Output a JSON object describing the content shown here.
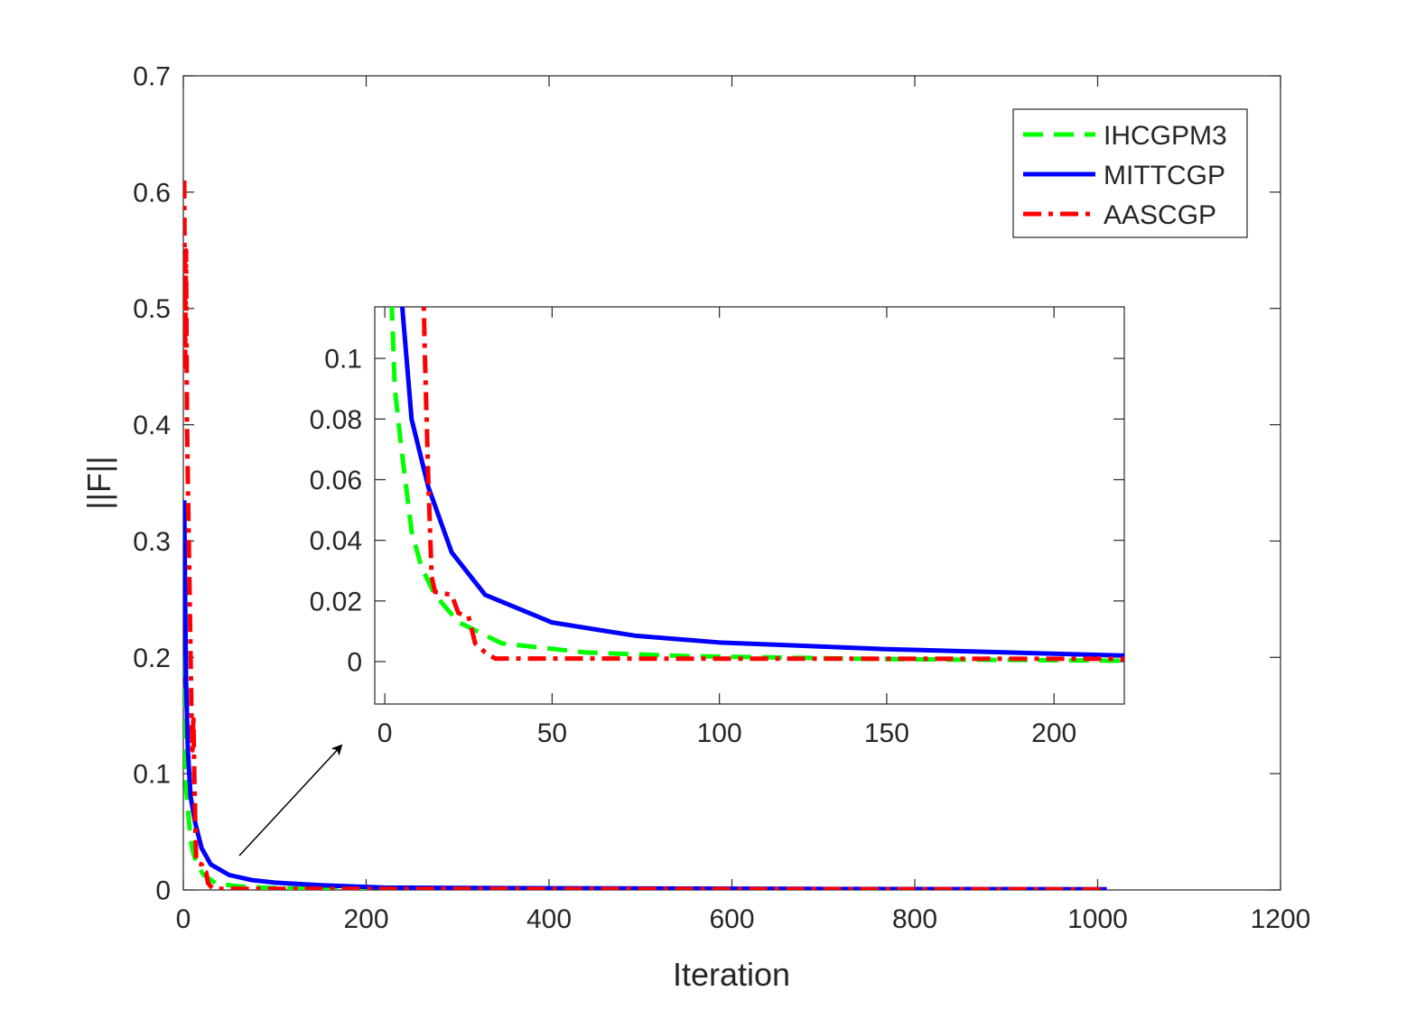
{
  "chart_data": {
    "type": "line",
    "xlabel": "Iteration",
    "ylabel": "||F||",
    "xlim": [
      0,
      1200
    ],
    "ylim": [
      0,
      0.7
    ],
    "xticks": [
      "0",
      "200",
      "400",
      "600",
      "800",
      "1000",
      "1200"
    ],
    "yticks": [
      "0",
      "0.1",
      "0.2",
      "0.3",
      "0.4",
      "0.5",
      "0.6",
      "0.7"
    ],
    "legend_position": "top-right",
    "series": [
      {
        "name": "IHCGPM3",
        "color": "#00ff00",
        "style": "dashed",
        "x": [
          1,
          2,
          3,
          5,
          8,
          11,
          15,
          22,
          35,
          60,
          90,
          150,
          220,
          400,
          700,
          1010
        ],
        "y": [
          0.2,
          0.12,
          0.09,
          0.07,
          0.043,
          0.031,
          0.022,
          0.013,
          0.006,
          0.003,
          0.0018,
          0.0008,
          0.0003,
          0.0002,
          0.0001,
          0.0001
        ]
      },
      {
        "name": "MITTCGP",
        "color": "#0000ff",
        "style": "solid",
        "x": [
          1,
          2,
          3,
          5,
          8,
          13,
          20,
          30,
          50,
          75,
          100,
          150,
          220,
          400,
          700,
          1010
        ],
        "y": [
          0.335,
          0.25,
          0.18,
          0.12,
          0.08,
          0.0576,
          0.036,
          0.022,
          0.0129,
          0.0085,
          0.0063,
          0.0041,
          0.002,
          0.0015,
          0.0009,
          0.0006
        ]
      },
      {
        "name": "AASCGP",
        "color": "#ff0000",
        "style": "dashdot",
        "x": [
          1,
          2,
          3,
          4,
          5,
          6,
          7,
          8,
          9,
          10,
          11,
          12,
          13,
          14,
          15,
          20,
          22,
          25,
          27,
          30,
          33,
          1010
        ],
        "y": [
          0.61,
          0.45,
          0.55,
          0.4,
          0.35,
          0.3,
          0.25,
          0.2,
          0.15,
          0.12,
          0.15,
          0.1,
          0.06,
          0.028,
          0.023,
          0.022,
          0.016,
          0.015,
          0.006,
          0.003,
          0.001,
          0.0005
        ]
      }
    ],
    "inset": {
      "xlim": [
        -3,
        221
      ],
      "ylim": [
        -0.014,
        0.117
      ],
      "xticks": [
        "0",
        "50",
        "100",
        "150",
        "200"
      ],
      "yticks": [
        "0",
        "0.02",
        "0.04",
        "0.06",
        "0.08",
        "0.1"
      ]
    }
  }
}
